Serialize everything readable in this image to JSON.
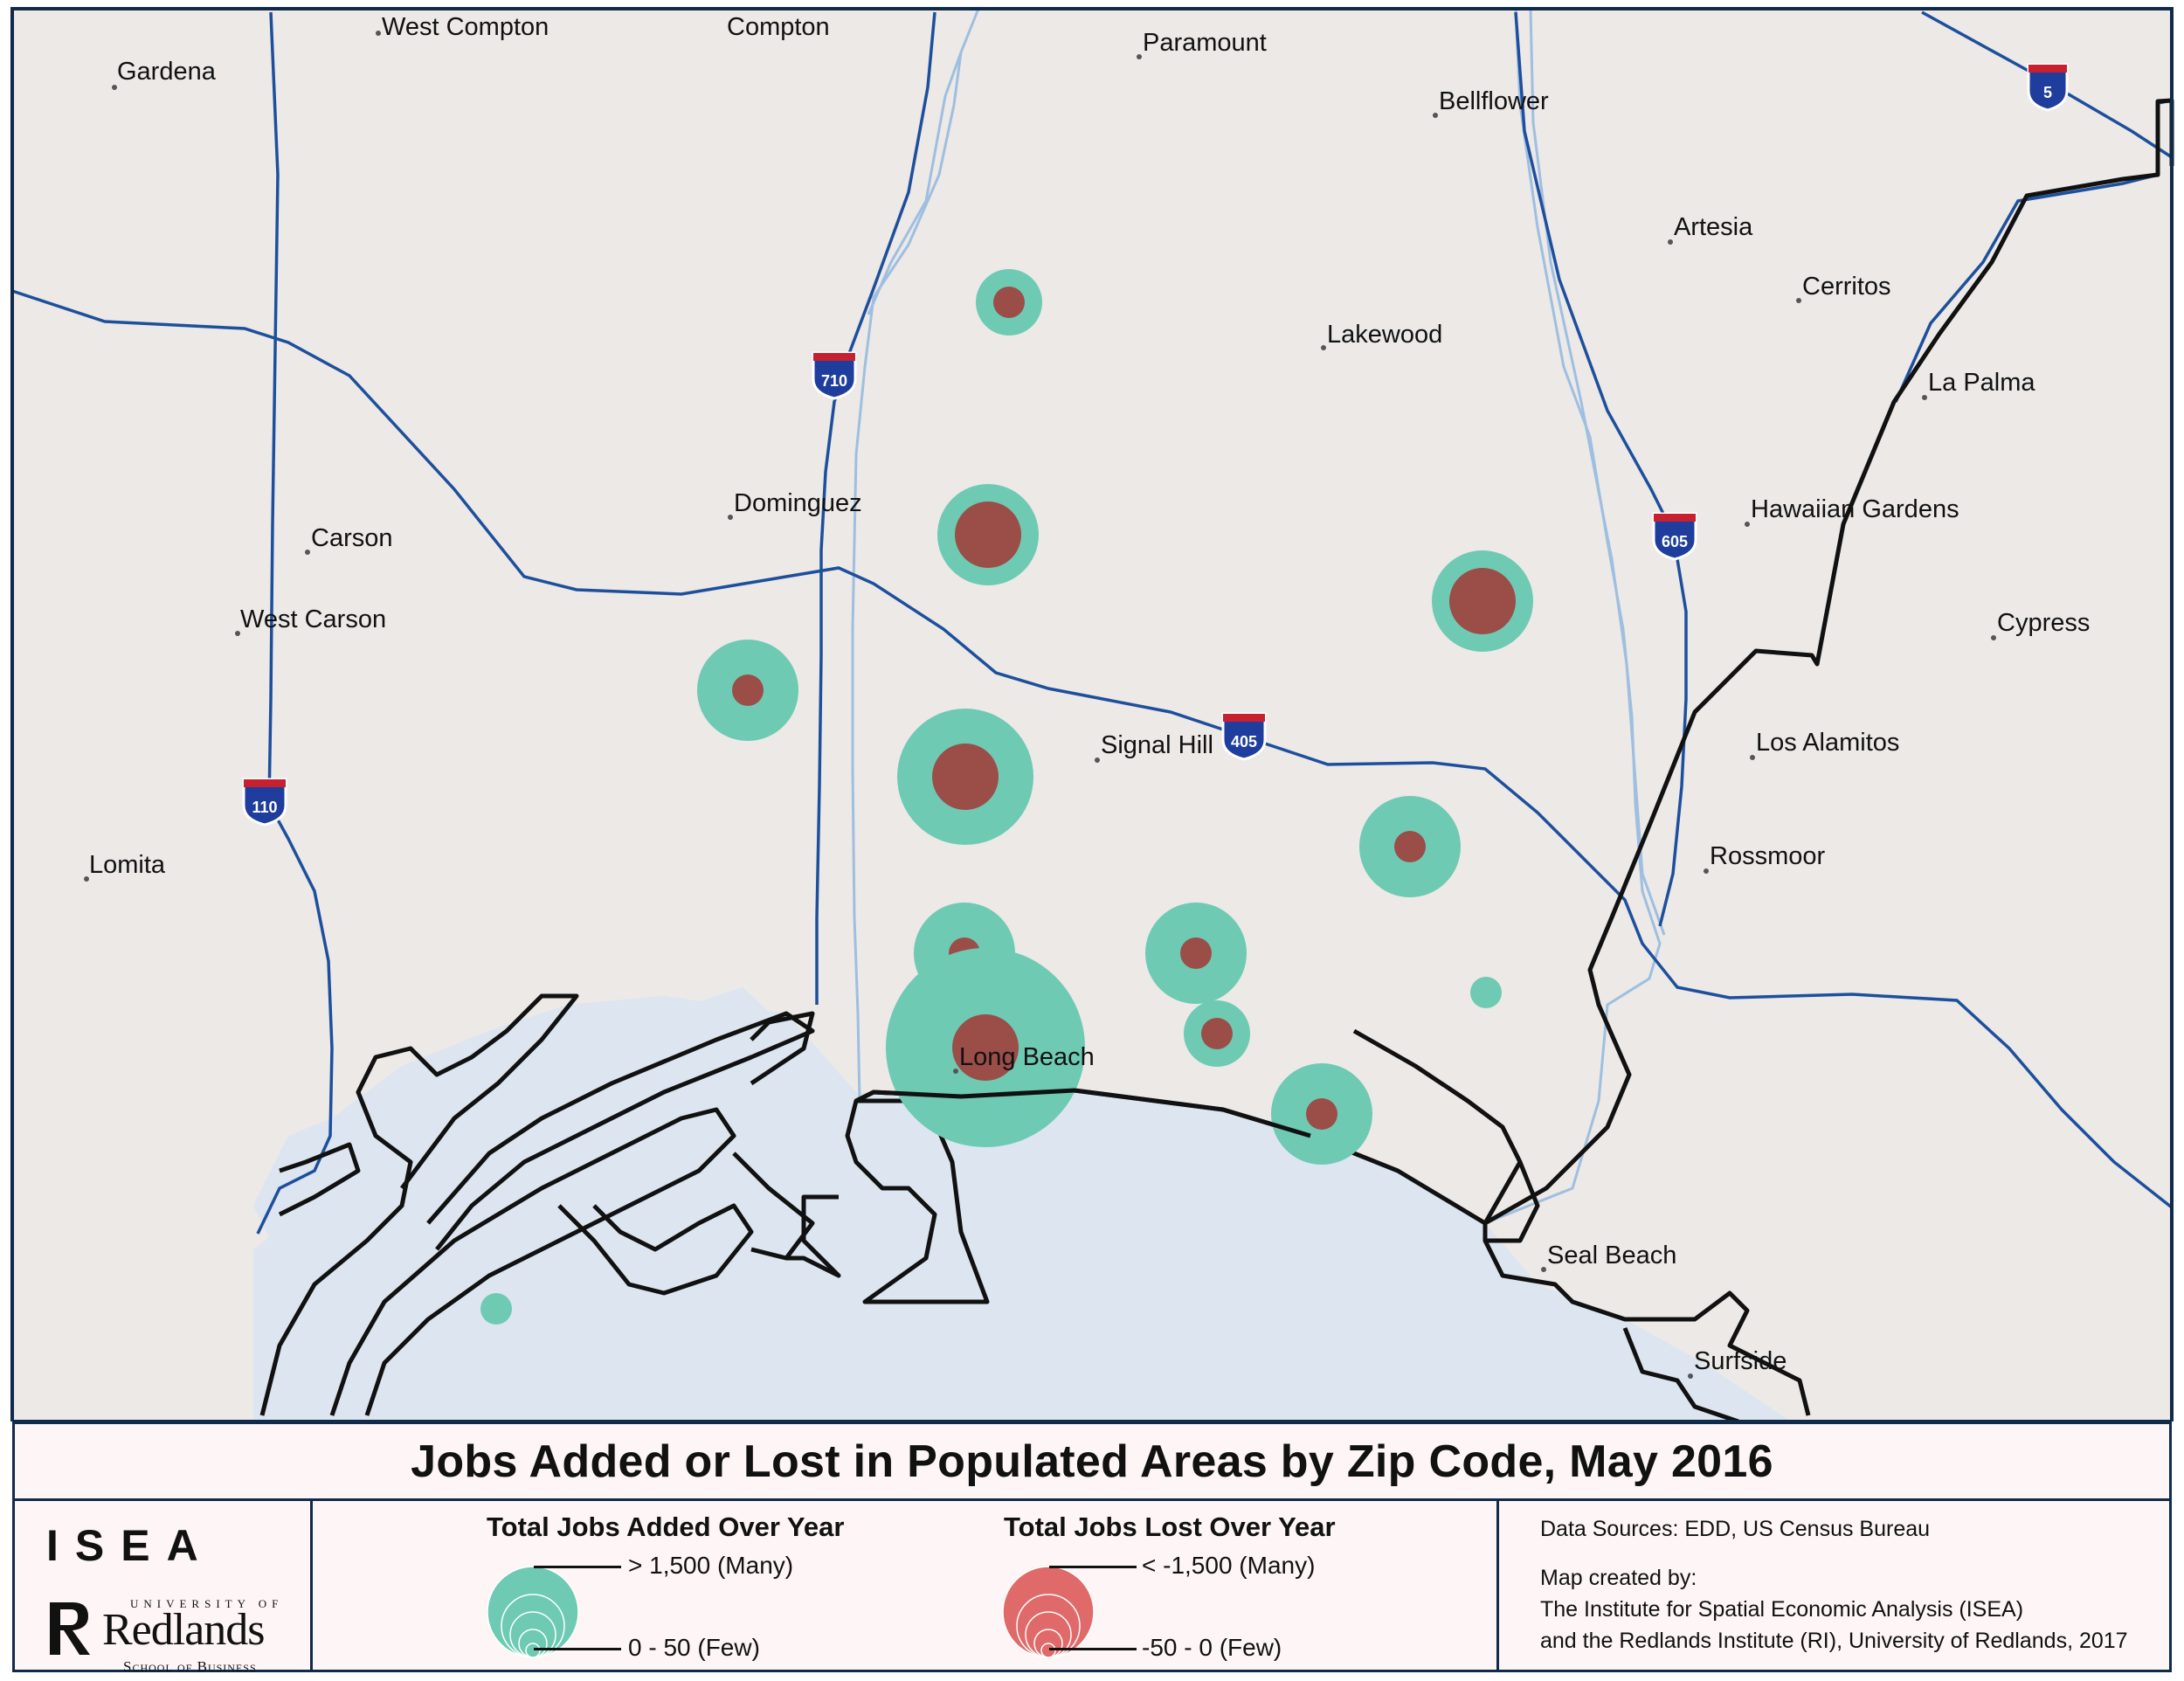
{
  "map": {
    "title": "Jobs Added or Lost in Populated Areas by Zip Code, May 2016",
    "colors": {
      "land": "#ece9e7",
      "water": "#dce5f0",
      "highway": "#1d4f9c",
      "river": "#9ebfe0",
      "coast": "#111111",
      "jobs_added": "#6ecab3",
      "jobs_lost": "#9b4d48",
      "legend_lost": "#e06a6a",
      "frame": "#0f2a4a"
    },
    "places": [
      {
        "name": "West Compton"
      },
      {
        "name": "Compton"
      },
      {
        "name": "Paramount"
      },
      {
        "name": "Gardena"
      },
      {
        "name": "Bellflower"
      },
      {
        "name": "Artesia"
      },
      {
        "name": "Cerritos"
      },
      {
        "name": "Lakewood"
      },
      {
        "name": "La Palma"
      },
      {
        "name": "Dominguez"
      },
      {
        "name": "Hawaiian Gardens"
      },
      {
        "name": "Carson"
      },
      {
        "name": "West Carson"
      },
      {
        "name": "Cypress"
      },
      {
        "name": "Signal Hill"
      },
      {
        "name": "Los Alamitos"
      },
      {
        "name": "Rossmoor"
      },
      {
        "name": "Lomita"
      },
      {
        "name": "Long Beach"
      },
      {
        "name": "Seal Beach"
      },
      {
        "name": "Surfside"
      }
    ],
    "highway_shields": [
      "5",
      "710",
      "605",
      "405",
      "110"
    ],
    "zip_symbols": [
      {
        "added_relative": 0.3,
        "lost_relative": 0.32
      },
      {
        "added_relative": 0.47,
        "lost_relative": 0.64
      },
      {
        "added_relative": 0.48,
        "lost_relative": 0.65
      },
      {
        "added_relative": 0.45,
        "lost_relative": 0.3
      },
      {
        "added_relative": 0.6,
        "lost_relative": 0.67
      },
      {
        "added_relative": 0.45,
        "lost_relative": 0.3
      },
      {
        "added_relative": 0.45,
        "lost_relative": 0.3
      },
      {
        "added_relative": 0.45,
        "lost_relative": 0.3
      },
      {
        "added_relative": 0.9,
        "lost_relative": 0.6
      },
      {
        "added_relative": 0.3,
        "lost_relative": 0.3
      },
      {
        "added_relative": 0.45,
        "lost_relative": 0.3
      },
      {
        "added_relative": 0.15,
        "lost_relative": 0
      },
      {
        "added_relative": 0.15,
        "lost_relative": 0
      }
    ]
  },
  "legend": {
    "added_title": "Total Jobs Added Over Year",
    "added_max": "> 1,500 (Many)",
    "added_min": "0 - 50  (Few)",
    "lost_title": "Total Jobs Lost Over Year",
    "lost_max": "< -1,500 (Many)",
    "lost_min": "-50 - 0  (Few)"
  },
  "logo": {
    "isea": "ISEA",
    "university_of": "UNIVERSITY OF",
    "redlands": "Redlands",
    "school": "School of Business"
  },
  "sources": {
    "data_sources": "Data Sources: EDD, US Census Bureau",
    "created_by": "Map created by:",
    "line1": "The Institute for Spatial Economic Analysis (ISEA)",
    "line2": "and the Redlands Institute (RI), University of Redlands, 2017"
  }
}
